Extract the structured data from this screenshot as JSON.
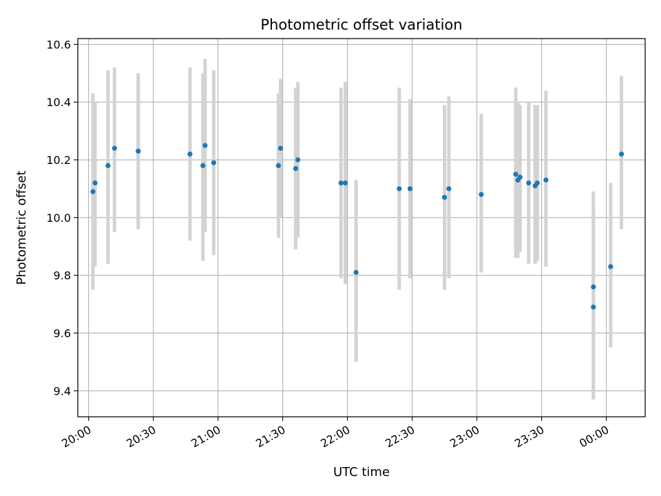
{
  "chart_data": {
    "type": "scatter",
    "title": "Photometric offset variation",
    "xlabel": "UTC time",
    "ylabel": "Photometric offset",
    "x_unit": "UTC time of night, 20:00 through 00:00 next day",
    "xlim": [
      "19:55",
      "00:18"
    ],
    "ylim": [
      9.31,
      10.62
    ],
    "x_ticks": [
      "20:00",
      "20:30",
      "21:00",
      "21:30",
      "22:00",
      "22:30",
      "23:00",
      "23:30",
      "00:00"
    ],
    "y_ticks": [
      "9.4",
      "9.6",
      "9.8",
      "10.0",
      "10.2",
      "10.4",
      "10.6"
    ],
    "grid": true,
    "marker_color": "#1f77b4",
    "errorbar_color": "#d3d3d3",
    "points": [
      {
        "t": "20:02",
        "y": 10.09,
        "lo": 9.75,
        "hi": 10.43
      },
      {
        "t": "20:03",
        "y": 10.12,
        "lo": 9.83,
        "hi": 10.4
      },
      {
        "t": "20:09",
        "y": 10.18,
        "lo": 9.84,
        "hi": 10.51
      },
      {
        "t": "20:12",
        "y": 10.24,
        "lo": 9.95,
        "hi": 10.52
      },
      {
        "t": "20:23",
        "y": 10.23,
        "lo": 9.97,
        "hi": 10.49
      },
      {
        "t": "20:23",
        "y": 10.23,
        "lo": 9.96,
        "hi": 10.5
      },
      {
        "t": "20:47",
        "y": 10.22,
        "lo": 9.92,
        "hi": 10.52
      },
      {
        "t": "20:53",
        "y": 10.18,
        "lo": 9.85,
        "hi": 10.5
      },
      {
        "t": "20:54",
        "y": 10.25,
        "lo": 9.95,
        "hi": 10.55
      },
      {
        "t": "20:58",
        "y": 10.19,
        "lo": 9.87,
        "hi": 10.51
      },
      {
        "t": "21:28",
        "y": 10.18,
        "lo": 9.93,
        "hi": 10.43
      },
      {
        "t": "21:29",
        "y": 10.24,
        "lo": 10.0,
        "hi": 10.48
      },
      {
        "t": "21:36",
        "y": 10.17,
        "lo": 9.89,
        "hi": 10.45
      },
      {
        "t": "21:37",
        "y": 10.2,
        "lo": 9.93,
        "hi": 10.47
      },
      {
        "t": "21:57",
        "y": 10.12,
        "lo": 9.79,
        "hi": 10.45
      },
      {
        "t": "21:59",
        "y": 10.12,
        "lo": 9.77,
        "hi": 10.47
      },
      {
        "t": "22:04",
        "y": 9.81,
        "lo": 9.5,
        "hi": 10.13
      },
      {
        "t": "22:24",
        "y": 10.1,
        "lo": 9.75,
        "hi": 10.45
      },
      {
        "t": "22:29",
        "y": 10.1,
        "lo": 9.79,
        "hi": 10.41
      },
      {
        "t": "22:45",
        "y": 10.07,
        "lo": 9.75,
        "hi": 10.39
      },
      {
        "t": "22:47",
        "y": 10.1,
        "lo": 9.79,
        "hi": 10.42
      },
      {
        "t": "23:02",
        "y": 10.08,
        "lo": 9.81,
        "hi": 10.36
      },
      {
        "t": "23:18",
        "y": 10.15,
        "lo": 9.86,
        "hi": 10.45
      },
      {
        "t": "23:19",
        "y": 10.13,
        "lo": 9.86,
        "hi": 10.4
      },
      {
        "t": "23:20",
        "y": 10.14,
        "lo": 9.88,
        "hi": 10.39
      },
      {
        "t": "23:24",
        "y": 10.12,
        "lo": 9.84,
        "hi": 10.4
      },
      {
        "t": "23:27",
        "y": 10.11,
        "lo": 9.84,
        "hi": 10.39
      },
      {
        "t": "23:28",
        "y": 10.12,
        "lo": 9.85,
        "hi": 10.39
      },
      {
        "t": "23:32",
        "y": 10.13,
        "lo": 9.83,
        "hi": 10.44
      },
      {
        "t": "23:54",
        "y": 9.76,
        "lo": 9.43,
        "hi": 10.09
      },
      {
        "t": "23:54",
        "y": 9.69,
        "lo": 9.37,
        "hi": 10.03
      },
      {
        "t": "00:02",
        "y": 9.83,
        "lo": 9.55,
        "hi": 10.12
      },
      {
        "t": "00:07",
        "y": 10.22,
        "lo": 9.96,
        "hi": 10.49
      }
    ]
  }
}
